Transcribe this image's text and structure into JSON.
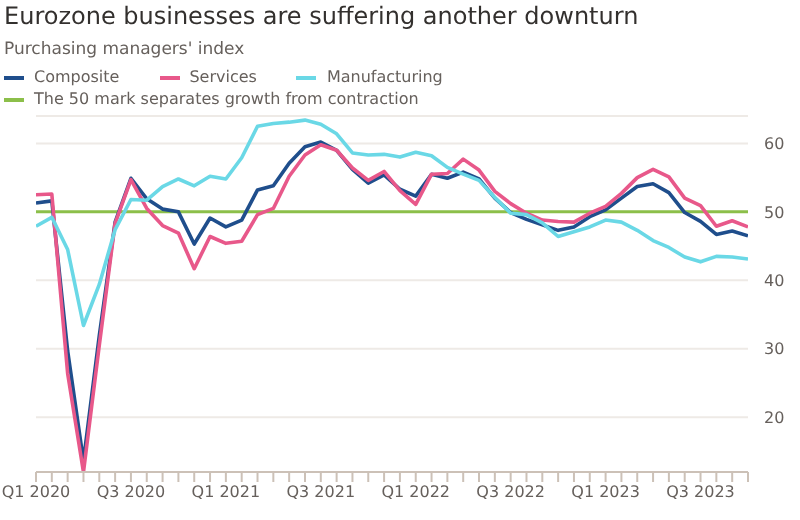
{
  "chart_data": {
    "type": "line",
    "title": "Eurozone businesses are suffering another downturn",
    "subtitle": "Purchasing managers' index",
    "x": [
      "2020-01",
      "2020-02",
      "2020-03",
      "2020-04",
      "2020-05",
      "2020-06",
      "2020-07",
      "2020-08",
      "2020-09",
      "2020-10",
      "2020-11",
      "2020-12",
      "2021-01",
      "2021-02",
      "2021-03",
      "2021-04",
      "2021-05",
      "2021-06",
      "2021-07",
      "2021-08",
      "2021-09",
      "2021-10",
      "2021-11",
      "2021-12",
      "2022-01",
      "2022-02",
      "2022-03",
      "2022-04",
      "2022-05",
      "2022-06",
      "2022-07",
      "2022-08",
      "2022-09",
      "2022-10",
      "2022-11",
      "2022-12",
      "2023-01",
      "2023-02",
      "2023-03",
      "2023-04",
      "2023-05",
      "2023-06",
      "2023-07",
      "2023-08",
      "2023-09",
      "2023-10"
    ],
    "series": [
      {
        "name": "Composite",
        "color": "#1f4e8c",
        "values": [
          51.3,
          51.6,
          29.7,
          13.6,
          31.9,
          48.5,
          54.9,
          51.9,
          50.4,
          50.0,
          45.3,
          49.1,
          47.8,
          48.8,
          53.2,
          53.8,
          57.1,
          59.5,
          60.2,
          59.0,
          56.2,
          54.2,
          55.4,
          53.3,
          52.3,
          55.5,
          54.9,
          55.8,
          54.8,
          52.0,
          49.9,
          48.9,
          48.1,
          47.3,
          47.8,
          49.3,
          50.3,
          52.0,
          53.7,
          54.1,
          52.8,
          49.9,
          48.6,
          46.7,
          47.2,
          46.5
        ]
      },
      {
        "name": "Services",
        "color": "#e8588a",
        "values": [
          52.5,
          52.6,
          26.4,
          12.0,
          30.5,
          48.3,
          54.7,
          50.5,
          48.0,
          46.9,
          41.7,
          46.4,
          45.4,
          45.7,
          49.6,
          50.5,
          55.2,
          58.3,
          59.8,
          59.0,
          56.4,
          54.6,
          55.9,
          53.1,
          51.1,
          55.5,
          55.6,
          57.7,
          56.1,
          53.0,
          51.2,
          49.8,
          48.8,
          48.6,
          48.5,
          49.8,
          50.8,
          52.7,
          55.0,
          56.2,
          55.1,
          52.0,
          50.9,
          47.9,
          48.7,
          47.8
        ]
      },
      {
        "name": "Manufacturing",
        "color": "#6ad8e6",
        "values": [
          47.9,
          49.2,
          44.5,
          33.4,
          39.4,
          47.4,
          51.8,
          51.7,
          53.7,
          54.8,
          53.8,
          55.2,
          54.8,
          57.9,
          62.5,
          62.9,
          63.1,
          63.4,
          62.8,
          61.4,
          58.6,
          58.3,
          58.4,
          58.0,
          58.7,
          58.2,
          56.5,
          55.5,
          54.6,
          52.1,
          49.8,
          49.6,
          48.4,
          46.4,
          47.1,
          47.8,
          48.8,
          48.5,
          47.3,
          45.8,
          44.8,
          43.4,
          42.7,
          43.5,
          43.4,
          43.1
        ]
      }
    ],
    "ref_lines": [
      {
        "axis": "y",
        "value": 50,
        "label": "The 50 mark separates growth from contraction",
        "color": "#8cbf4a"
      }
    ],
    "xlim": [
      "2020-01",
      "2023-10"
    ],
    "xticks": [
      {
        "value": "2020-01",
        "label": "Q1 2020"
      },
      {
        "value": "2020-02",
        "label": null
      },
      {
        "value": "2020-03",
        "label": null
      },
      {
        "value": "2020-04",
        "label": null
      },
      {
        "value": "2020-05",
        "label": null
      },
      {
        "value": "2020-06",
        "label": null
      },
      {
        "value": "2020-07",
        "label": "Q3 2020"
      },
      {
        "value": "2020-08",
        "label": null
      },
      {
        "value": "2020-09",
        "label": null
      },
      {
        "value": "2020-10",
        "label": null
      },
      {
        "value": "2020-11",
        "label": null
      },
      {
        "value": "2020-12",
        "label": null
      },
      {
        "value": "2021-01",
        "label": "Q1 2021"
      },
      {
        "value": "2021-02",
        "label": null
      },
      {
        "value": "2021-03",
        "label": null
      },
      {
        "value": "2021-04",
        "label": null
      },
      {
        "value": "2021-05",
        "label": null
      },
      {
        "value": "2021-06",
        "label": null
      },
      {
        "value": "2021-07",
        "label": "Q3 2021"
      },
      {
        "value": "2021-08",
        "label": null
      },
      {
        "value": "2021-09",
        "label": null
      },
      {
        "value": "2021-10",
        "label": null
      },
      {
        "value": "2021-11",
        "label": null
      },
      {
        "value": "2021-12",
        "label": null
      },
      {
        "value": "2022-01",
        "label": "Q1 2022"
      },
      {
        "value": "2022-02",
        "label": null
      },
      {
        "value": "2022-03",
        "label": null
      },
      {
        "value": "2022-04",
        "label": null
      },
      {
        "value": "2022-05",
        "label": null
      },
      {
        "value": "2022-06",
        "label": null
      },
      {
        "value": "2022-07",
        "label": "Q3 2022"
      },
      {
        "value": "2022-08",
        "label": null
      },
      {
        "value": "2022-09",
        "label": null
      },
      {
        "value": "2022-10",
        "label": null
      },
      {
        "value": "2022-11",
        "label": null
      },
      {
        "value": "2022-12",
        "label": null
      },
      {
        "value": "2023-01",
        "label": "Q1 2023"
      },
      {
        "value": "2023-02",
        "label": null
      },
      {
        "value": "2023-03",
        "label": null
      },
      {
        "value": "2023-04",
        "label": null
      },
      {
        "value": "2023-05",
        "label": null
      },
      {
        "value": "2023-06",
        "label": null
      },
      {
        "value": "2023-07",
        "label": "Q3 2023"
      },
      {
        "value": "2023-08",
        "label": null
      },
      {
        "value": "2023-09",
        "label": null
      },
      {
        "value": "2023-10",
        "label": null
      }
    ],
    "ylim": [
      12,
      64
    ],
    "yticks": [
      20,
      30,
      40,
      50,
      60
    ],
    "grid": "y",
    "legend": "top left",
    "marker": "none",
    "line_style": "solid"
  }
}
